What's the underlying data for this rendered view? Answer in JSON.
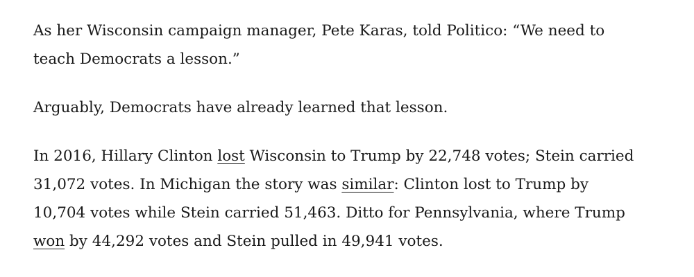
{
  "paragraphs": [
    {
      "segments": [
        {
          "text": "As her Wisconsin campaign manager, Pete Karas, told Politico: “We need to teach Democrats a lesson.”"
        }
      ]
    },
    {
      "segments": [
        {
          "text": "Arguably, Democrats have already learned that lesson."
        }
      ]
    },
    {
      "segments": [
        {
          "text": "In 2016, Hillary Clinton "
        },
        {
          "text": "lost",
          "link": true
        },
        {
          "text": " Wisconsin to Trump by 22,748 votes; Stein carried 31,072 votes. In Michigan the story was "
        },
        {
          "text": "similar",
          "link": true
        },
        {
          "text": ": Clinton lost to Trump by 10,704 votes while Stein carried 51,463. Ditto for Pennsylvania, where Trump "
        },
        {
          "text": "won",
          "link": true
        },
        {
          "text": " by 44,292 votes and Stein pulled in 49,941 votes."
        }
      ]
    }
  ]
}
